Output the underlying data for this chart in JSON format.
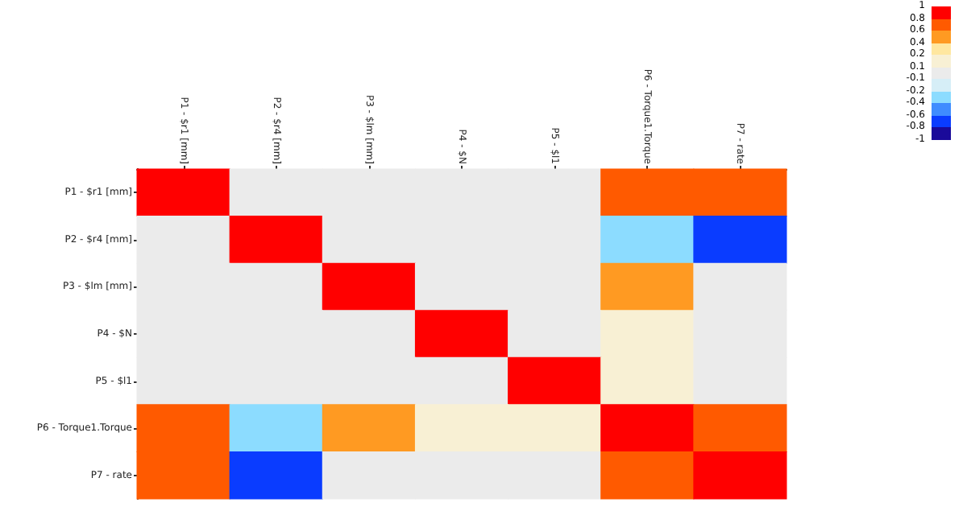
{
  "chart_data": {
    "type": "heatmap",
    "categories": [
      "P1 - $r1 [mm]",
      "P2 - $r4 [mm]",
      "P3 - $lm [mm]",
      "P4 - $N",
      "P5 - $l1",
      "P6 - Torque1.Torque",
      "P7 - rate"
    ],
    "y_categories": [
      "P1 - $r1 [mm]",
      "P2 - $r4 [mm]",
      "P3 - $lm [mm]",
      "P4 - $N",
      "P5 - $l1",
      "P6 - Torque1.Torque",
      "P7 - rate"
    ],
    "cells": [
      [
        1,
        0,
        0,
        0,
        0,
        0.7,
        0.7
      ],
      [
        0,
        1,
        0,
        0,
        0,
        -0.3,
        -0.7
      ],
      [
        0,
        0,
        1,
        0,
        0,
        0.5,
        0
      ],
      [
        0,
        0,
        0,
        1,
        0,
        0.15,
        0
      ],
      [
        0,
        0,
        0,
        0,
        1,
        0.15,
        0
      ],
      [
        0.7,
        -0.3,
        0.5,
        0.15,
        0.15,
        1,
        0.7
      ],
      [
        0.7,
        -0.7,
        0,
        0,
        0,
        0.7,
        1
      ]
    ],
    "clim": [
      -1,
      1
    ],
    "cticks": [
      -1,
      -0.8,
      -0.6,
      -0.4,
      -0.2,
      -0.1,
      0.1,
      0.2,
      0.4,
      0.6,
      0.8,
      1
    ]
  }
}
